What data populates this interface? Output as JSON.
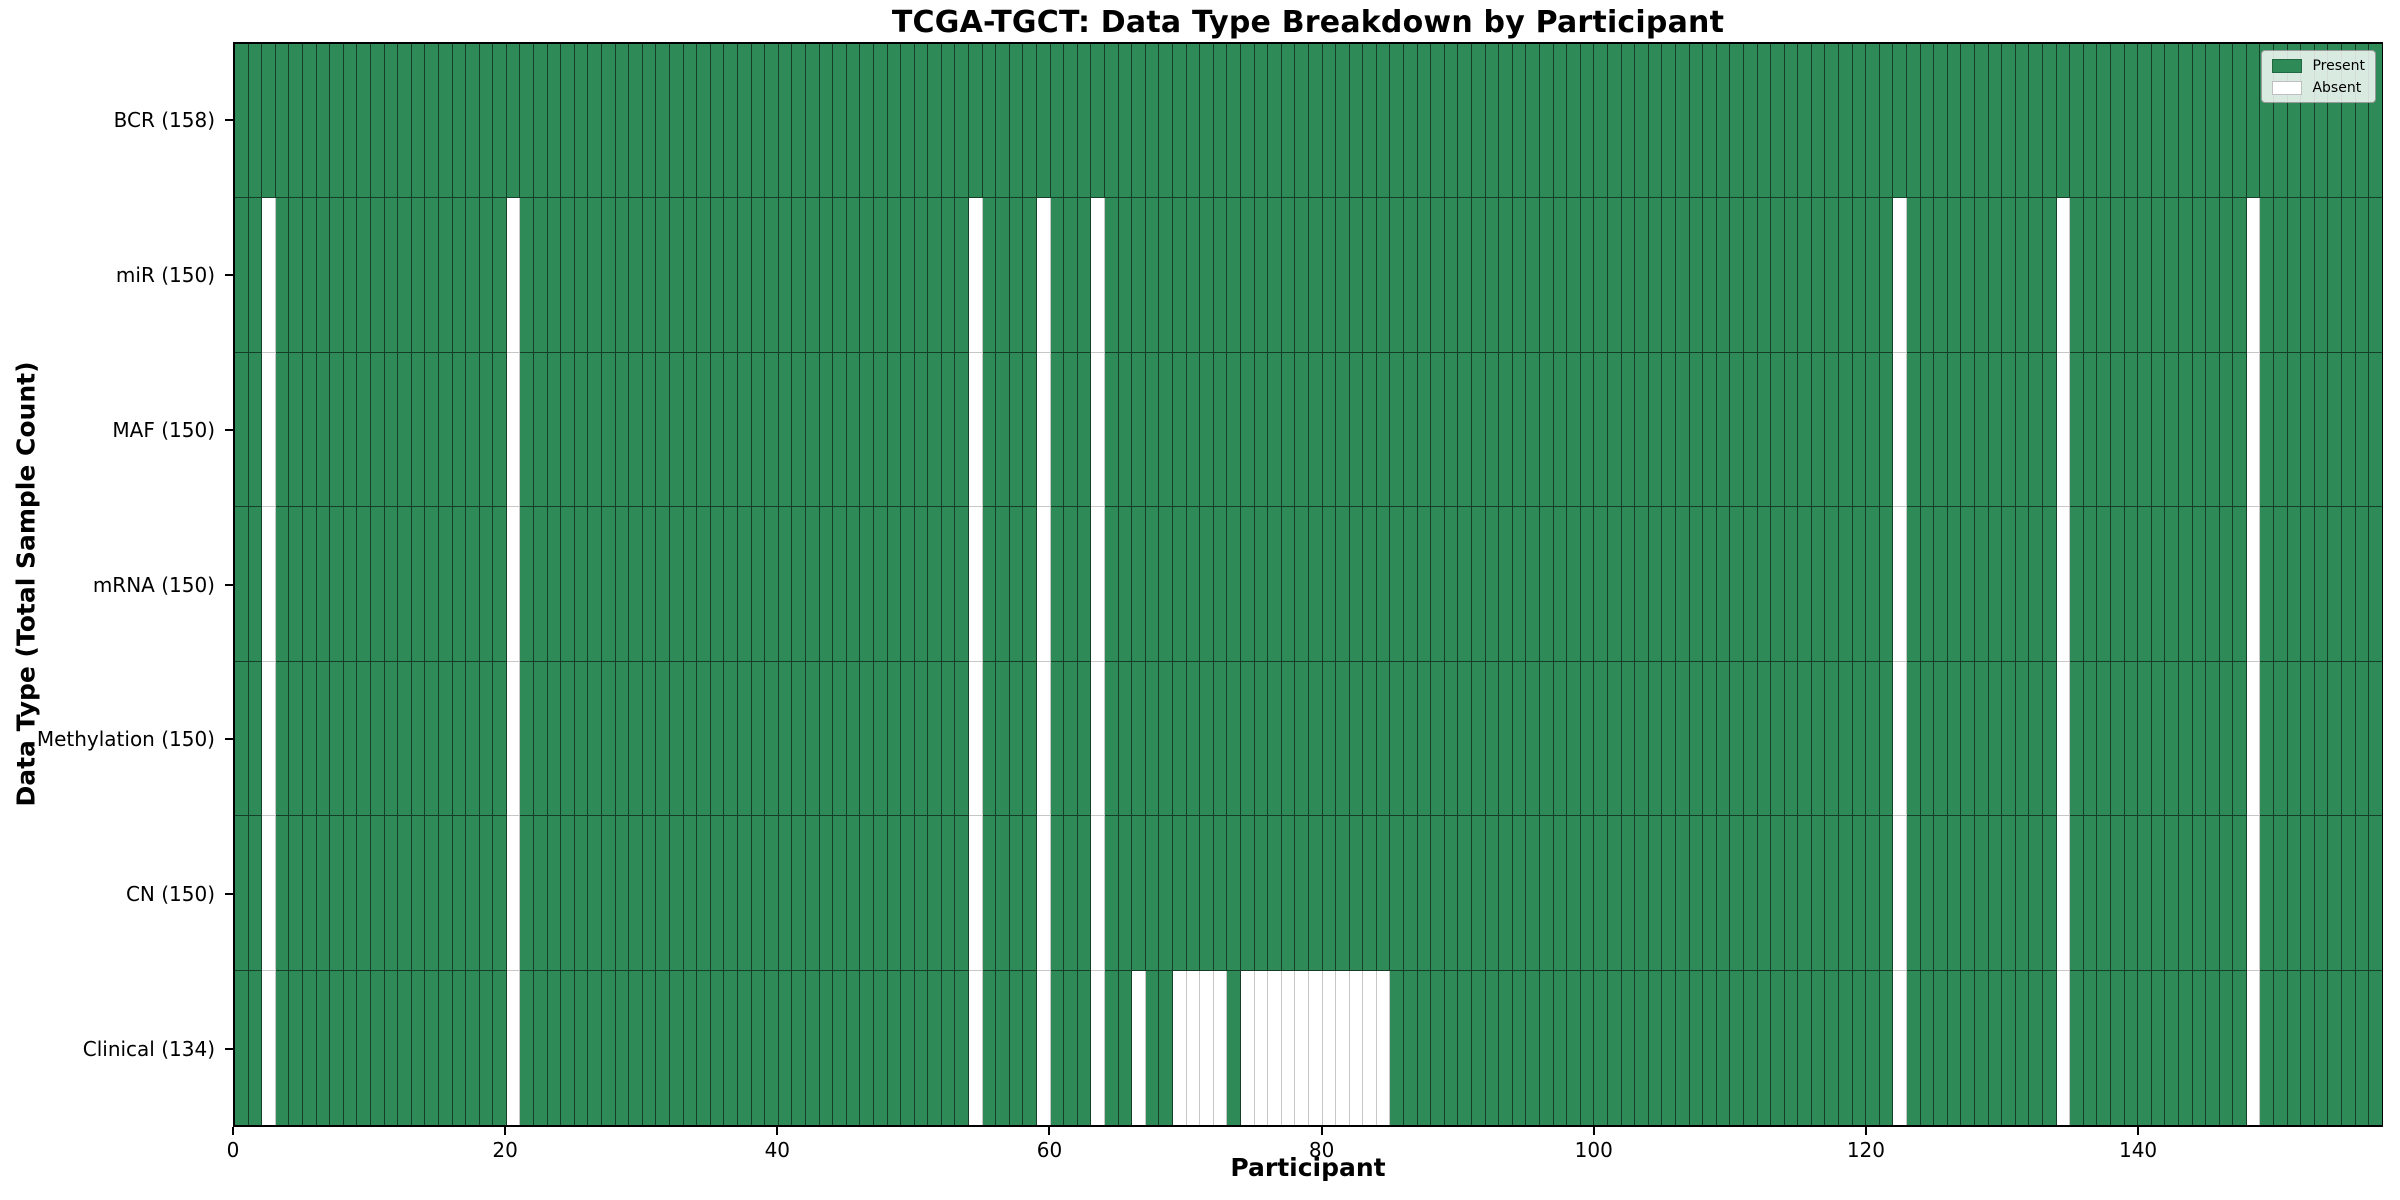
{
  "chart_data": {
    "type": "heatmap",
    "title": "TCGA-TGCT: Data Type Breakdown by Participant",
    "xlabel": "Participant",
    "ylabel": "Data Type (Total Sample Count)",
    "n_participants": 158,
    "x_range": [
      0,
      158
    ],
    "x_ticks": [
      0,
      20,
      40,
      60,
      80,
      100,
      120,
      140
    ],
    "grid": "cell-edges",
    "legend": {
      "position": "upper-right",
      "entries": [
        {
          "label": "Present",
          "color": "#2e8b57"
        },
        {
          "label": "Absent",
          "color": "#ffffff"
        }
      ]
    },
    "colors": {
      "present": "#2e8b57",
      "absent": "#ffffff",
      "edge_on_present": "rgba(0,0,0,0.55)",
      "edge_on_absent": "rgba(0,0,0,0.22)",
      "spine": "#000000",
      "figure_background": "#ffffff"
    },
    "rows": [
      {
        "label": "BCR (158)",
        "data_type": "BCR",
        "total_samples": 158,
        "absent_participants": []
      },
      {
        "label": "miR (150)",
        "data_type": "miR",
        "total_samples": 150,
        "absent_participants": [
          2,
          20,
          54,
          59,
          63,
          122,
          134,
          148
        ]
      },
      {
        "label": "MAF (150)",
        "data_type": "MAF",
        "total_samples": 150,
        "absent_participants": [
          2,
          20,
          54,
          59,
          63,
          122,
          134,
          148
        ]
      },
      {
        "label": "mRNA (150)",
        "data_type": "mRNA",
        "total_samples": 150,
        "absent_participants": [
          2,
          20,
          54,
          59,
          63,
          122,
          134,
          148
        ]
      },
      {
        "label": "Methylation (150)",
        "data_type": "Methylation",
        "total_samples": 150,
        "absent_participants": [
          2,
          20,
          54,
          59,
          63,
          122,
          134,
          148
        ]
      },
      {
        "label": "CN (150)",
        "data_type": "CN",
        "total_samples": 150,
        "absent_participants": [
          2,
          20,
          54,
          59,
          63,
          122,
          134,
          148
        ]
      },
      {
        "label": "Clinical (134)",
        "data_type": "Clinical",
        "total_samples": 134,
        "absent_participants": [
          2,
          20,
          54,
          59,
          63,
          66,
          69,
          70,
          71,
          72,
          74,
          75,
          76,
          77,
          78,
          79,
          80,
          81,
          82,
          83,
          84,
          122,
          134,
          148
        ]
      }
    ]
  }
}
